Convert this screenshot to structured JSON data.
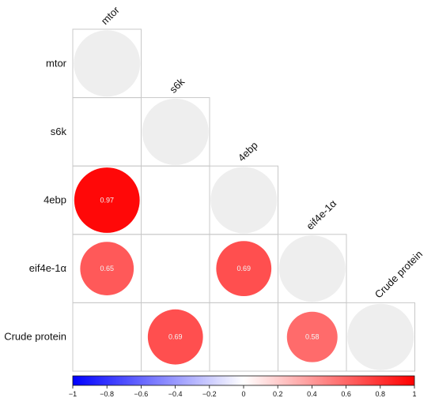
{
  "chart_data": {
    "type": "heatmap",
    "variables": [
      "mtor",
      "s6k",
      "4ebp",
      "eif4e-1α",
      "Crude protein"
    ],
    "cells": [
      {
        "row": "mtor",
        "col": "mtor",
        "value": 1,
        "label": ""
      },
      {
        "row": "s6k",
        "col": "s6k",
        "value": 1,
        "label": ""
      },
      {
        "row": "4ebp",
        "col": "4ebp",
        "value": 1,
        "label": ""
      },
      {
        "row": "eif4e-1α",
        "col": "eif4e-1α",
        "value": 1,
        "label": ""
      },
      {
        "row": "Crude protein",
        "col": "Crude protein",
        "value": 1,
        "label": ""
      },
      {
        "row": "4ebp",
        "col": "mtor",
        "value": 0.97,
        "label": "0.97"
      },
      {
        "row": "eif4e-1α",
        "col": "mtor",
        "value": 0.65,
        "label": "0.65"
      },
      {
        "row": "eif4e-1α",
        "col": "4ebp",
        "value": 0.69,
        "label": "0.69"
      },
      {
        "row": "Crude protein",
        "col": "s6k",
        "value": 0.69,
        "label": "0.69"
      },
      {
        "row": "Crude protein",
        "col": "eif4e-1α",
        "value": 0.58,
        "label": "0.58"
      }
    ],
    "colorbar": {
      "range": [
        -1,
        1
      ],
      "ticks": [
        "−1",
        "−0.8",
        "−0.6",
        "−0.4",
        "−0.2",
        "0",
        "0.2",
        "0.4",
        "0.6",
        "0.8",
        "1"
      ],
      "colors": {
        "negative": "#0000ff",
        "zero": "#ffffff",
        "positive": "#ff0000"
      }
    },
    "diagonal_color": "#eeeeee",
    "grid": true
  }
}
